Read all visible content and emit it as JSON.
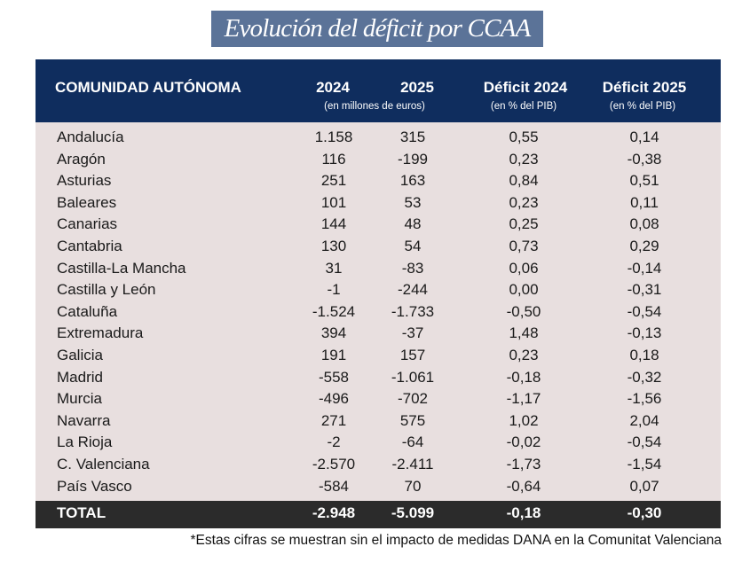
{
  "chart_data": {
    "type": "table",
    "title": "Evolución del déficit por CCAA",
    "columns": {
      "name": "COMUNIDAD AUTÓNOMA",
      "y2024": "2024",
      "y2025": "2025",
      "euros_unit": "(en millones de euros)",
      "def2024": "Déficit 2024",
      "def2024_unit": "(en % del PIB)",
      "def2025": "Déficit 2025",
      "def2025_unit": "(en % del PIB)"
    },
    "rows": [
      [
        "Andalucía",
        "1.158",
        "315",
        "0,55",
        "0,14"
      ],
      [
        "Aragón",
        "116",
        "-199",
        "0,23",
        "-0,38"
      ],
      [
        "Asturias",
        "251",
        "163",
        "0,84",
        "0,51"
      ],
      [
        "Baleares",
        "101",
        "53",
        "0,23",
        "0,11"
      ],
      [
        "Canarias",
        "144",
        "48",
        "0,25",
        "0,08"
      ],
      [
        "Cantabria",
        "130",
        "54",
        "0,73",
        "0,29"
      ],
      [
        "Castilla-La Mancha",
        "31",
        "-83",
        "0,06",
        "-0,14"
      ],
      [
        "Castilla y León",
        "-1",
        "-244",
        "0,00",
        "-0,31"
      ],
      [
        "Cataluña",
        "-1.524",
        "-1.733",
        "-0,50",
        "-0,54"
      ],
      [
        "Extremadura",
        "394",
        "-37",
        "1,48",
        "-0,13"
      ],
      [
        "Galicia",
        "191",
        "157",
        "0,23",
        "0,18"
      ],
      [
        "Madrid",
        "-558",
        "-1.061",
        "-0,18",
        "-0,32"
      ],
      [
        "Murcia",
        "-496",
        "-702",
        "-1,17",
        "-1,56"
      ],
      [
        "Navarra",
        "271",
        "575",
        "1,02",
        "2,04"
      ],
      [
        "La Rioja",
        "-2",
        "-64",
        "-0,02",
        "-0,54"
      ],
      [
        "C. Valenciana",
        "-2.570",
        "-2.411",
        "-1,73",
        "-1,54"
      ],
      [
        "País Vasco",
        "-584",
        "70",
        "-0,64",
        "0,07"
      ]
    ],
    "total": [
      "TOTAL",
      "-2.948",
      "-5.099",
      "-0,18",
      "-0,30"
    ],
    "footnote": "*Estas cifras se muestran sin el impacto de medidas DANA en la Comunitat Valenciana"
  },
  "colors": {
    "title_bg": "#5b7398",
    "header_bg": "#0f2d5e",
    "body_bg": "#e8dfdf",
    "total_bg": "#2b2b2b"
  }
}
